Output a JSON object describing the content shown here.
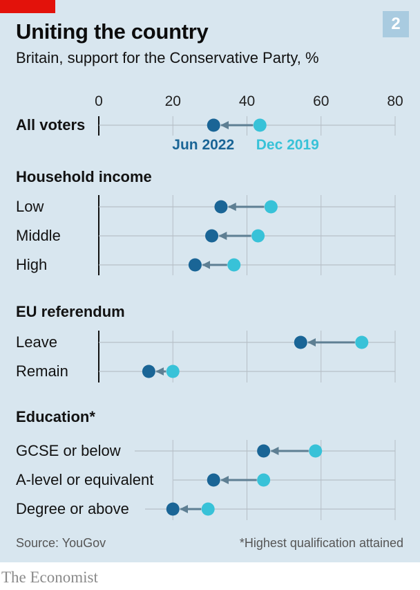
{
  "header": {
    "title": "Uniting the country",
    "subtitle": "Britain, support for the Conservative Party, %",
    "chart_number": "2"
  },
  "footer": {
    "source": "Source: YouGov",
    "footnote": "*Highest qualification attained",
    "brand": "The Economist"
  },
  "colors": {
    "background": "#d8e6ef",
    "jun_2022": "#1a6596",
    "dec_2019": "#38c2d8",
    "arrow": "#5e7f93",
    "gridline": "#b6bfc6",
    "brand_red": "#e3120b"
  },
  "chart_data": {
    "type": "dot-arrow",
    "xlim": [
      0,
      80
    ],
    "xticks": [
      "0",
      "20",
      "40",
      "60",
      "80"
    ],
    "series": [
      {
        "name": "Jun 2022",
        "color": "#1a6596"
      },
      {
        "name": "Dec 2019",
        "color": "#38c2d8"
      }
    ],
    "groups": [
      {
        "label": "",
        "rows": [
          {
            "label": "All voters",
            "jun_2022": 31,
            "dec_2019": 43.5
          }
        ]
      },
      {
        "label": "Household income",
        "rows": [
          {
            "label": "Low",
            "jun_2022": 33,
            "dec_2019": 46.5
          },
          {
            "label": "Middle",
            "jun_2022": 30.5,
            "dec_2019": 43
          },
          {
            "label": "High",
            "jun_2022": 26,
            "dec_2019": 36.5
          }
        ]
      },
      {
        "label": "EU referendum",
        "rows": [
          {
            "label": "Leave",
            "jun_2022": 54.5,
            "dec_2019": 71
          },
          {
            "label": "Remain",
            "jun_2022": 13.5,
            "dec_2019": 20
          }
        ]
      },
      {
        "label": "Education*",
        "rows": [
          {
            "label": "GCSE or below",
            "jun_2022": 44.5,
            "dec_2019": 58.5
          },
          {
            "label": "A-level or equivalent",
            "jun_2022": 31,
            "dec_2019": 44.5
          },
          {
            "label": "Degree or above",
            "jun_2022": 20,
            "dec_2019": 29.5
          }
        ]
      }
    ]
  }
}
